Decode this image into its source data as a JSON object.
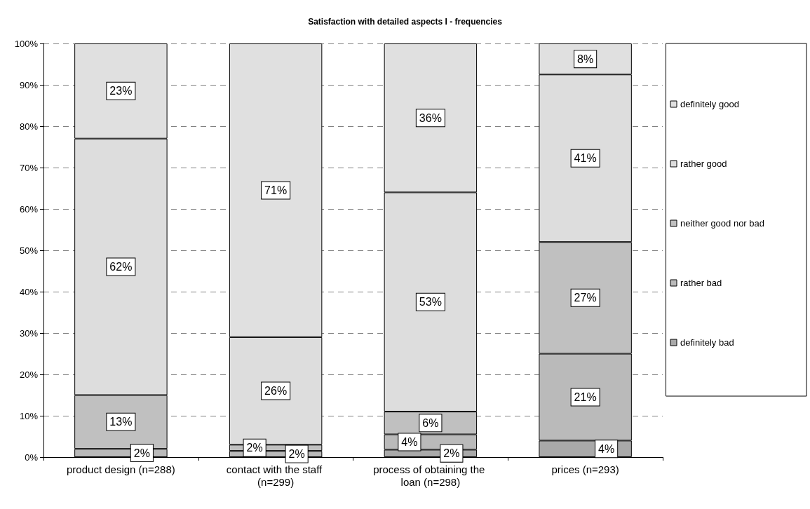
{
  "chart_data": {
    "type": "bar",
    "stacked": true,
    "title": "Satisfaction with detailed aspects I - frequencies",
    "categories": [
      "product design (n=288)",
      "contact with the staff (n=299)",
      "process of obtaining the loan (n=298)",
      "prices (n=293)"
    ],
    "series": [
      {
        "name": "definitely bad",
        "color": "#a9a9a9",
        "values": [
          0,
          0,
          1.8,
          4
        ],
        "value_labels": [
          null,
          null,
          "2%",
          "4%"
        ]
      },
      {
        "name": "rather bad",
        "color": "#bababa",
        "values": [
          2,
          1.5,
          3.7,
          21
        ],
        "value_labels": [
          "2%",
          "2%",
          "4%",
          "21%"
        ]
      },
      {
        "name": "neither good nor bad",
        "color": "#c0c0c0",
        "values": [
          13,
          1.5,
          5.5,
          27
        ],
        "value_labels": [
          "13%",
          "2%",
          "6%",
          "27%"
        ]
      },
      {
        "name": "rather good",
        "color": "#dddddd",
        "values": [
          62,
          26,
          53,
          40.5
        ],
        "value_labels": [
          "62%",
          "26%",
          "53%",
          "41%"
        ]
      },
      {
        "name": "definitely good",
        "color": "#e0e0e0",
        "values": [
          23,
          71,
          36,
          7.5
        ],
        "value_labels": [
          "23%",
          "71%",
          "36%",
          "8%"
        ]
      }
    ],
    "ylim": [
      0,
      100
    ],
    "yticks": [
      {
        "value": 0,
        "label": "0%"
      },
      {
        "value": 10,
        "label": "10%"
      },
      {
        "value": 20,
        "label": "20%"
      },
      {
        "value": 30,
        "label": "30%"
      },
      {
        "value": 40,
        "label": "40%"
      },
      {
        "value": 50,
        "label": "50%"
      },
      {
        "value": 60,
        "label": "60%"
      },
      {
        "value": 70,
        "label": "70%"
      },
      {
        "value": 80,
        "label": "80%"
      },
      {
        "value": 90,
        "label": "90%"
      },
      {
        "value": 100,
        "label": "100%"
      }
    ],
    "grid": "y",
    "legend": "right"
  }
}
